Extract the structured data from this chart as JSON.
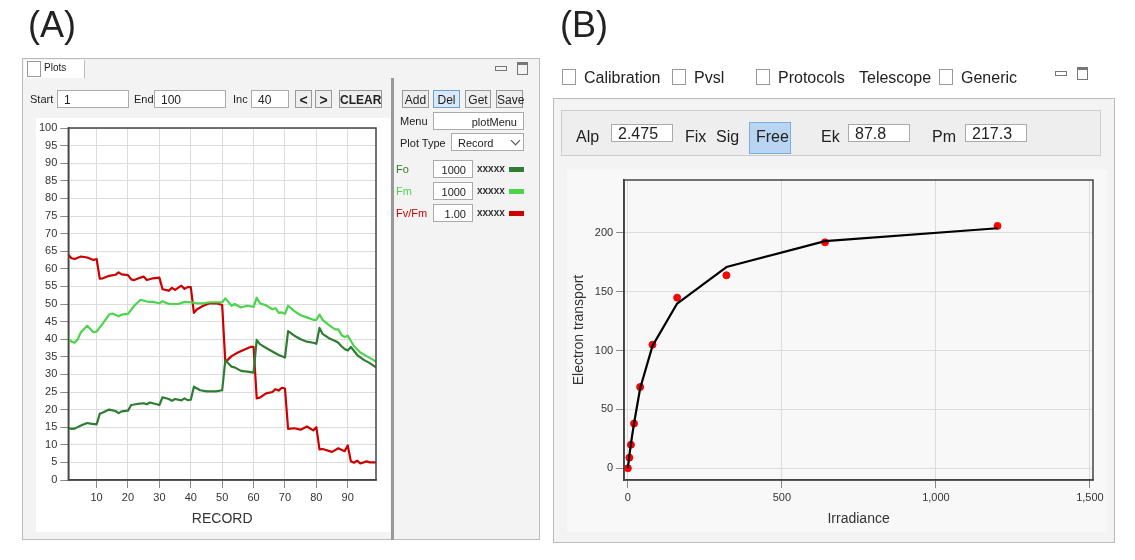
{
  "chart_data": [
    {
      "type": "line",
      "title": "(A)",
      "xlabel": "RECORD",
      "xlim": [
        1,
        99
      ],
      "xticks": [
        10,
        20,
        30,
        40,
        50,
        60,
        70,
        80,
        90
      ],
      "ylim": [
        0,
        100
      ],
      "yticks": [
        0,
        5,
        10,
        15,
        20,
        25,
        30,
        35,
        40,
        45,
        50,
        55,
        60,
        65,
        70,
        75,
        80,
        85,
        90,
        95,
        100
      ],
      "grid": true,
      "legend": "right",
      "marker": "none",
      "series": [
        {
          "name": "Fo",
          "color": "#2e7d32",
          "x": [
            1,
            2,
            3,
            5,
            7,
            8,
            10,
            11,
            12,
            14,
            16,
            17,
            18,
            20,
            21,
            23,
            25,
            26,
            27,
            30,
            31,
            33,
            34,
            35,
            37,
            38,
            39,
            40,
            41,
            43,
            45,
            48,
            50,
            51,
            53,
            54,
            56,
            58,
            60,
            61,
            62,
            64,
            66,
            68,
            70,
            71,
            73,
            75,
            77,
            79,
            80,
            81,
            82,
            84,
            86,
            87,
            88,
            89,
            90,
            91,
            93,
            95,
            97,
            99
          ],
          "values": [
            14.8,
            14.5,
            14.6,
            15.5,
            16.2,
            16,
            15.8,
            18.8,
            19.2,
            20,
            19.6,
            19,
            19.5,
            19.7,
            21.3,
            21.6,
            21.8,
            21.5,
            22,
            21.3,
            23.5,
            23,
            22.5,
            23,
            22.6,
            23.2,
            22.7,
            22.8,
            26.5,
            25.5,
            25.2,
            25.2,
            25.5,
            34,
            32.2,
            32,
            31,
            30.8,
            30.5,
            39.8,
            38.6,
            37.5,
            36.5,
            35.5,
            34.8,
            42.3,
            41,
            40,
            39.3,
            39,
            38.7,
            43.2,
            41.5,
            40.3,
            39.5,
            39,
            38,
            37.2,
            36.8,
            37.8,
            35.5,
            34.2,
            33.2,
            32
          ]
        },
        {
          "name": "Fm",
          "color": "#4cd44c",
          "x": [
            1,
            2,
            3,
            4,
            5,
            7,
            9,
            10,
            12,
            14,
            15,
            17,
            18,
            20,
            22,
            24,
            26,
            28,
            30,
            31,
            33,
            36,
            38,
            40,
            42,
            44,
            46,
            48,
            50,
            51,
            53,
            54,
            56,
            58,
            60,
            61,
            62,
            64,
            66,
            67,
            68,
            69,
            70,
            71,
            73,
            75,
            77,
            79,
            80,
            81,
            82,
            84,
            86,
            87,
            88,
            89,
            90,
            92,
            94,
            96,
            98,
            99
          ],
          "values": [
            40.2,
            39.3,
            39,
            40,
            42,
            43.8,
            42,
            42.2,
            44.5,
            47,
            47.3,
            46.5,
            47,
            47.2,
            49.5,
            51.2,
            50.7,
            50.6,
            50.2,
            50.8,
            50,
            50,
            50.6,
            50.5,
            50.2,
            50.2,
            50.5,
            50.5,
            50.5,
            51.6,
            49.5,
            50,
            49,
            49.5,
            49.2,
            51.8,
            50.2,
            49.6,
            48.5,
            48.8,
            47.5,
            47.6,
            47.2,
            49.5,
            48,
            46.8,
            46.2,
            45.5,
            45.5,
            47,
            45.5,
            44,
            42.8,
            42.8,
            41.2,
            40.6,
            41,
            38,
            36.2,
            35.2,
            34.2,
            33.6
          ]
        },
        {
          "name": "Fv/Fm",
          "color": "#cc0000",
          "x": [
            1,
            2,
            3,
            5,
            7,
            9,
            10,
            11,
            12,
            14,
            16,
            17,
            18,
            20,
            21,
            22,
            24,
            25,
            26,
            28,
            30,
            31,
            33,
            34,
            35,
            37,
            38,
            39,
            40,
            41,
            42,
            44,
            46,
            48,
            50,
            51,
            53,
            55,
            57,
            59,
            60,
            61,
            62,
            64,
            66,
            67,
            68,
            69,
            70,
            71,
            73,
            75,
            77,
            79,
            80,
            81,
            82,
            85,
            87,
            89,
            90,
            91,
            92,
            93,
            94,
            96,
            97,
            99
          ],
          "values": [
            64,
            63,
            62.8,
            63.5,
            63.2,
            62.5,
            62.8,
            57.2,
            57.3,
            58,
            58.3,
            59,
            58.4,
            58.2,
            57,
            56.8,
            57.5,
            57.8,
            56.8,
            57.3,
            57.5,
            54.2,
            53.8,
            54.6,
            54,
            55.2,
            54.3,
            54.8,
            54.8,
            47.5,
            48.5,
            49.5,
            50.2,
            50.2,
            49.7,
            33.5,
            35.2,
            36.2,
            37,
            37.8,
            37.8,
            23.2,
            23.4,
            24.6,
            25,
            25.8,
            25.4,
            26.2,
            26,
            14.5,
            14.7,
            14.3,
            15.2,
            14.1,
            15,
            8.7,
            8.8,
            8,
            9,
            8.2,
            9.8,
            5.3,
            4.9,
            5.5,
            4.7,
            5.3,
            5,
            5
          ]
        }
      ],
      "annotations": [
        "Plots",
        "Start",
        "1",
        "End",
        "100",
        "Inc",
        "40",
        "<",
        ">",
        "CLEAR",
        "Add",
        "Del",
        "Get",
        "Save",
        "Menu",
        "plotMenu",
        "Plot Type",
        "Record",
        "1000",
        "xxxxx",
        "1000",
        "xxxxx",
        "1.00",
        "xxxxx"
      ]
    },
    {
      "type": "scatter",
      "title": "(B)",
      "xlabel": "Irradiance",
      "ylabel": "Electron transport",
      "xlim": [
        -12,
        1510
      ],
      "xticks": [
        0,
        500,
        {
          "value": 1000,
          "label": "1,000"
        },
        {
          "value": 1500,
          "label": "1,500"
        }
      ],
      "ylim": [
        -10,
        245
      ],
      "yticks": [
        0,
        50,
        100,
        150,
        200
      ],
      "grid": true,
      "marker": "circle",
      "series": [
        {
          "type": "line",
          "color": "#000000",
          "marker": "none",
          "x": [
            0,
            5,
            10,
            20,
            40,
            80,
            160,
            320,
            640,
            1200
          ],
          "values": [
            0,
            11,
            21,
            38,
            68,
            104,
            140,
            171,
            193,
            204
          ]
        },
        {
          "color": "#ff0000",
          "x": [
            0,
            5,
            10,
            20,
            40,
            80,
            160,
            320,
            640,
            1200
          ],
          "values": [
            0,
            9,
            20,
            38,
            69,
            105,
            145,
            164,
            192,
            206
          ]
        }
      ],
      "annotations": [
        "Calibration",
        "Pvsl",
        "Protocols",
        "Telescope",
        "Generic",
        "Alp",
        "2.475",
        "Fix",
        "Sig",
        "Free",
        "Ek",
        "87.8",
        "Pm",
        "217.3"
      ]
    }
  ]
}
